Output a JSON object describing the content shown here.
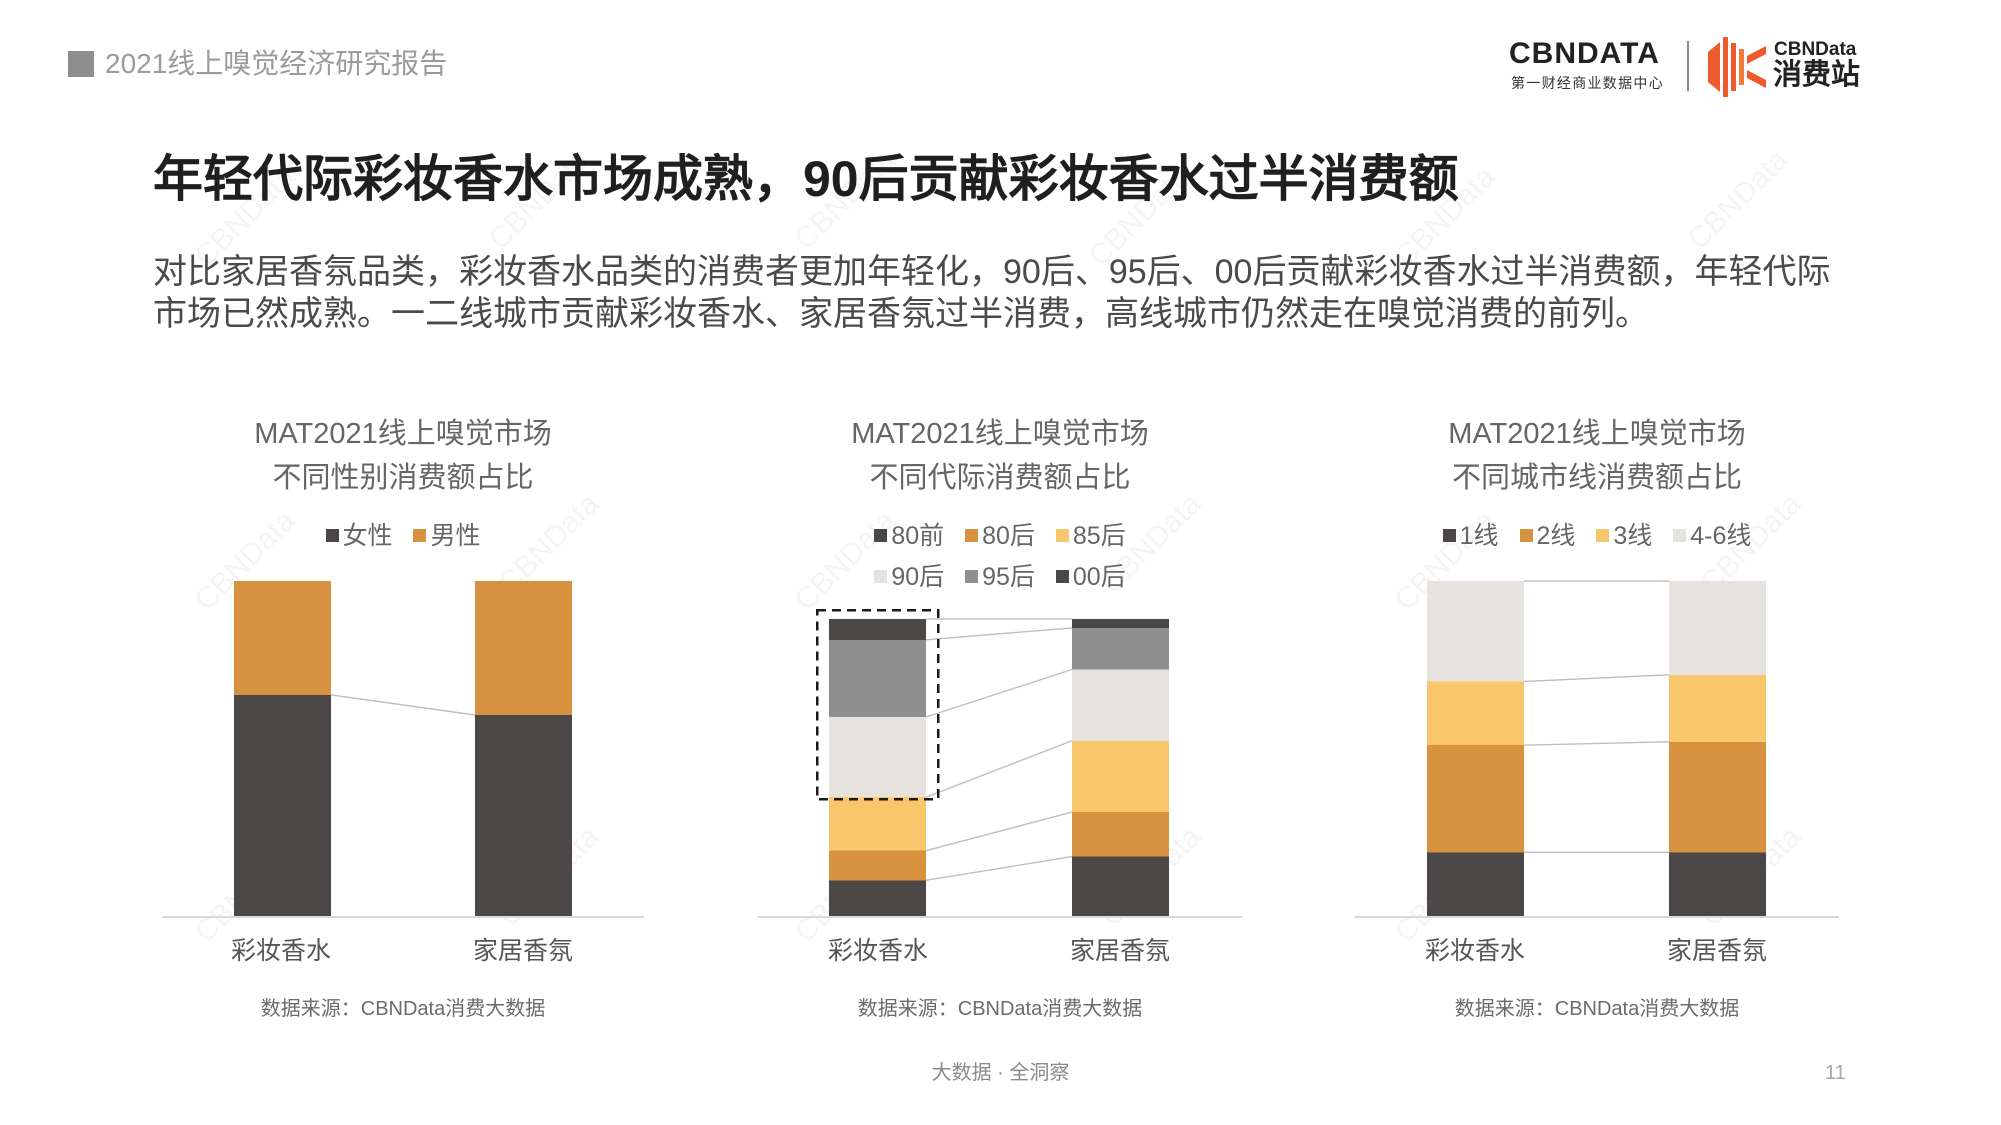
{
  "header": {
    "report_title": "2021线上嗅觉经济研究报告",
    "marker_icon": "gray-square"
  },
  "logo": {
    "brand": "CBNDATA",
    "brand_subtitle": "第一财经商业数据中心",
    "sub_brand_name": "CBNData",
    "sub_brand_title": "消费站",
    "icon": "consumer-station-logo-icon",
    "color": "#ee5a2b"
  },
  "slide": {
    "title": "年轻代际彩妆香水市场成熟，90后贡献彩妆香水过半消费额",
    "body_lines": [
      "对比家居香氛品类，彩妆香水品类的消费者更加年轻化，90后、95后、00后贡献彩妆香水过半消费额，年轻代际",
      "市场已然成熟。一二线城市贡献彩妆香水、家居香氛过半消费，高线城市仍然走在嗅觉消费的前列。"
    ]
  },
  "watermark": "CBNData",
  "footer": {
    "tagline": "大数据 · 全洞察",
    "page_number": "11"
  },
  "colors": {
    "title": "#1f1f1f",
    "body": "#4a4a4a",
    "muted": "#666666",
    "axis": "#d9d9d9",
    "connector": "#bfbfbf",
    "highlight": "#1a1a1a"
  },
  "chart_data": [
    {
      "type": "bar",
      "stacked": true,
      "title": "MAT2021线上嗅觉市场",
      "subtitle": "不同性别消费额占比",
      "categories": [
        "彩妆香水",
        "家居香氛"
      ],
      "series": [
        {
          "name": "女性",
          "values": [
            66,
            60
          ],
          "color": "#4b4746"
        },
        {
          "name": "男性",
          "values": [
            34,
            40
          ],
          "color": "#d6923f"
        }
      ],
      "ylim": [
        0,
        100
      ],
      "grid": false,
      "legend_position": "top",
      "source": "数据来源：CBNData消费大数据"
    },
    {
      "type": "bar",
      "stacked": true,
      "title": "MAT2021线上嗅觉市场",
      "subtitle": "不同代际消费额占比",
      "categories": [
        "彩妆香水",
        "家居香氛"
      ],
      "series": [
        {
          "name": "80前",
          "values": [
            12,
            20
          ],
          "color": "#4b4746"
        },
        {
          "name": "80后",
          "values": [
            10,
            15
          ],
          "color": "#d6923f"
        },
        {
          "name": "85后",
          "values": [
            18,
            24
          ],
          "color": "#f8c66b"
        },
        {
          "name": "90后",
          "values": [
            27,
            24
          ],
          "color": "#e6e3de"
        },
        {
          "name": "95后",
          "values": [
            26,
            14
          ],
          "color": "#8f8f8f"
        },
        {
          "name": "00后",
          "values": [
            7,
            3
          ],
          "color": "#4b4746"
        }
      ],
      "ylim": [
        0,
        100
      ],
      "grid": false,
      "legend_position": "top",
      "source": "数据来源：CBNData消费大数据"
    },
    {
      "type": "bar",
      "stacked": true,
      "title": "MAT2021线上嗅觉市场",
      "subtitle": "不同城市线消费额占比",
      "categories": [
        "彩妆香水",
        "家居香氛"
      ],
      "series": [
        {
          "name": "1线",
          "values": [
            19,
            19
          ],
          "color": "#4b4746"
        },
        {
          "name": "2线",
          "values": [
            32,
            33
          ],
          "color": "#d6923f"
        },
        {
          "name": "3线",
          "values": [
            19,
            20
          ],
          "color": "#f8c66b"
        },
        {
          "name": "4-6线",
          "values": [
            30,
            28
          ],
          "color": "#e6e3de"
        }
      ],
      "ylim": [
        0,
        100
      ],
      "grid": false,
      "legend_position": "top",
      "source": "数据来源：CBNData消费大数据"
    }
  ]
}
